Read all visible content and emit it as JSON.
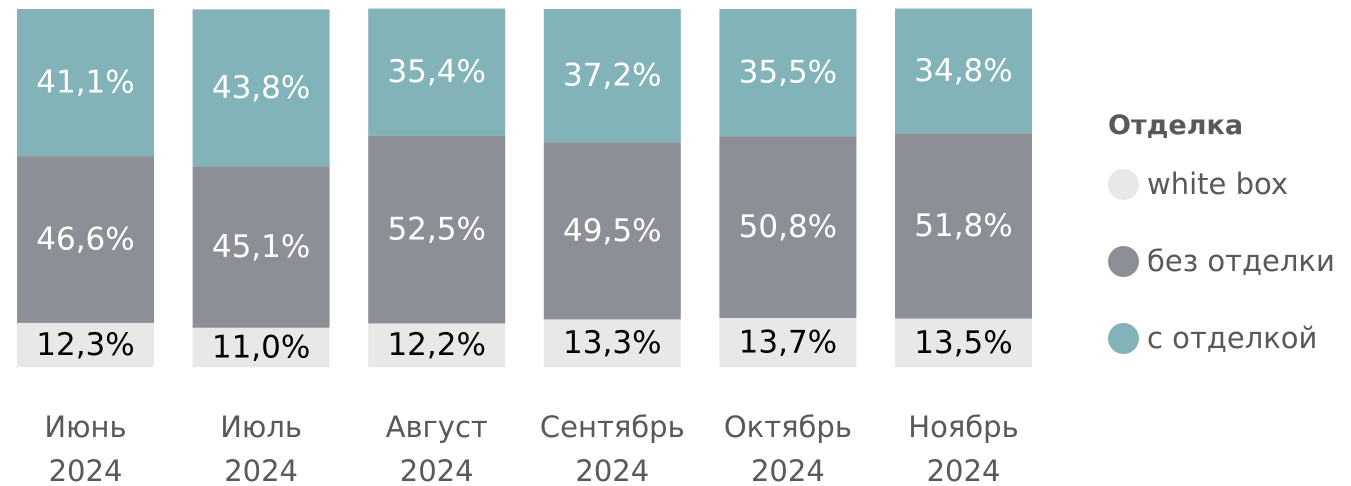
{
  "chart_data": {
    "type": "bar",
    "stacked": true,
    "percent": true,
    "categories": [
      [
        "Июнь",
        "2024"
      ],
      [
        "Июль",
        "2024"
      ],
      [
        "Август",
        "2024"
      ],
      [
        "Сентябрь",
        "2024"
      ],
      [
        "Октябрь",
        "2024"
      ],
      [
        "Ноябрь",
        "2024"
      ]
    ],
    "series": [
      {
        "name": "white box",
        "color": "#e8e8e8",
        "text_color": "#000000",
        "values": [
          12.3,
          11.0,
          12.2,
          13.3,
          13.7,
          13.5
        ],
        "labels": [
          "12,3%",
          "11,0%",
          "12,2%",
          "13,3%",
          "13,7%",
          "13,5%"
        ]
      },
      {
        "name": "без отделки",
        "color": "#8c9096",
        "text_color": "#ffffff",
        "values": [
          46.6,
          45.1,
          52.5,
          49.5,
          50.8,
          51.8
        ],
        "labels": [
          "46,6%",
          "45,1%",
          "52,5%",
          "49,5%",
          "50,8%",
          "51,8%"
        ]
      },
      {
        "name": "с отделкой",
        "color": "#81b3b9",
        "text_color": "#ffffff",
        "values": [
          41.1,
          43.8,
          35.4,
          37.2,
          35.5,
          34.8
        ],
        "labels": [
          "41,1%",
          "43,8%",
          "35,4%",
          "37,2%",
          "35,5%",
          "34,8%"
        ]
      }
    ],
    "ylim": [
      0,
      100
    ],
    "legend": {
      "title": "Отделка",
      "position": "right",
      "items": [
        "white box",
        "без отделки",
        "с отделкой"
      ]
    },
    "grid": false
  }
}
